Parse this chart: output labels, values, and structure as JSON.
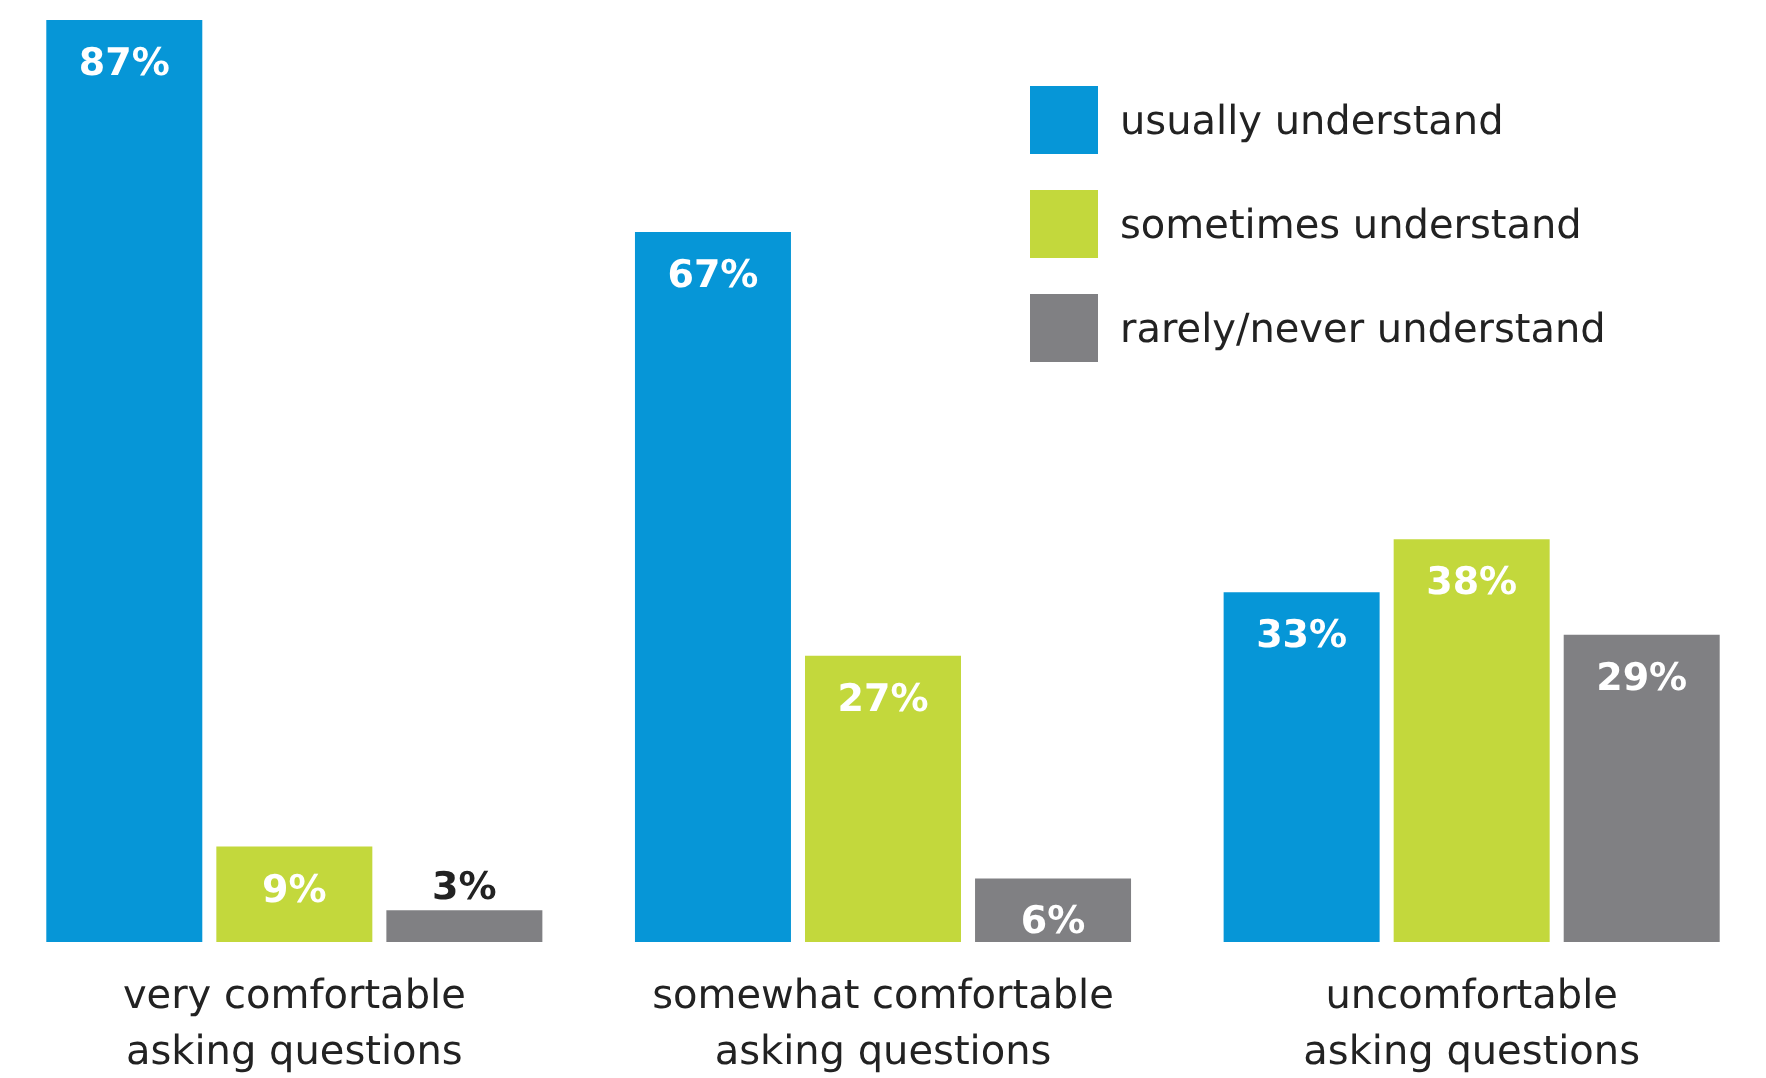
{
  "chart_data": {
    "type": "bar",
    "categories": [
      "very comfortable\nasking questions",
      "somewhat comfortable\nasking questions",
      "uncomfortable\nasking questions"
    ],
    "series": [
      {
        "name": "usually understand",
        "color": "#0696d7",
        "values": [
          87,
          67,
          33
        ],
        "value_labels": [
          "87%",
          "67%",
          "33%"
        ]
      },
      {
        "name": "sometimes understand",
        "color": "#c3d83c",
        "values": [
          9,
          27,
          38
        ],
        "value_labels": [
          "9%",
          "27%",
          "38%"
        ]
      },
      {
        "name": "rarely/never understand",
        "color": "#808083",
        "values": [
          3,
          6,
          29
        ],
        "value_labels": [
          "3%",
          "6%",
          "29%"
        ]
      }
    ],
    "legend": "top right"
  }
}
